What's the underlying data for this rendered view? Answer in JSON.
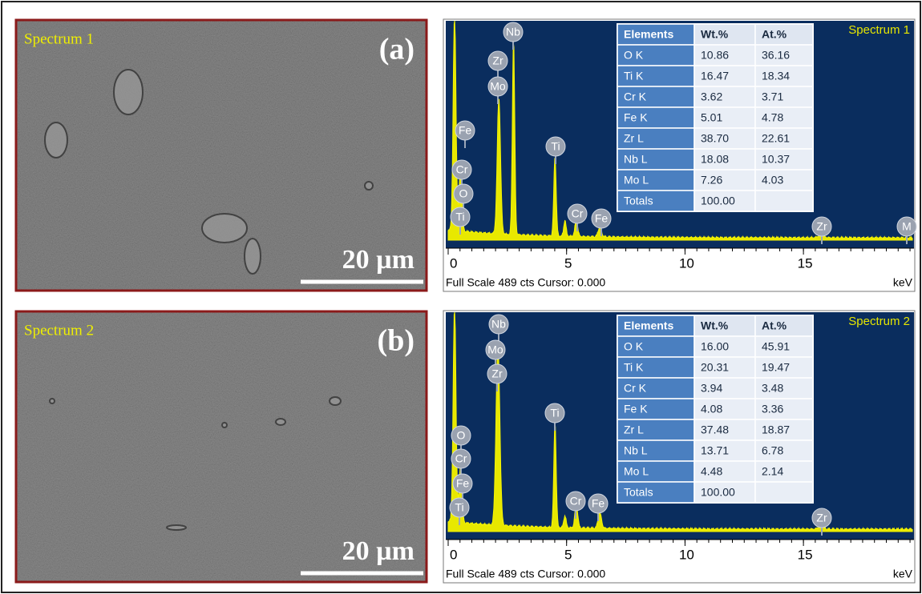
{
  "panels": [
    {
      "image": {
        "spectrum_label": "Spectrum 1",
        "panel_label": "(a)",
        "scale_bar": "20 µm"
      },
      "spectrum": {
        "title": "Spectrum 1",
        "xlim": [
          0,
          19.6
        ],
        "xticks": [
          0,
          5,
          10,
          15
        ],
        "footer": "Full Scale 489 cts Cursor: 0.000",
        "unit": "keV",
        "peak_labels": [
          "Nb",
          "Zr",
          "Mo",
          "Fe",
          "Cr",
          "O",
          "Ti",
          "Ti",
          "Cr",
          "Fe",
          "Zr",
          "M"
        ]
      },
      "table": {
        "header": [
          "Elements",
          "Wt.%",
          "At.%"
        ],
        "rows": [
          [
            "O K",
            "10.86",
            "36.16"
          ],
          [
            "Ti K",
            "16.47",
            "18.34"
          ],
          [
            "Cr K",
            "3.62",
            "3.71"
          ],
          [
            "Fe K",
            "5.01",
            "4.78"
          ],
          [
            "Zr L",
            "38.70",
            "22.61"
          ],
          [
            "Nb L",
            "18.08",
            "10.37"
          ],
          [
            "Mo L",
            "7.26",
            "4.03"
          ],
          [
            "Totals",
            "100.00"
          ]
        ]
      }
    },
    {
      "image": {
        "spectrum_label": "Spectrum 2",
        "panel_label": "(b)",
        "scale_bar": "20 µm"
      },
      "spectrum": {
        "title": "Spectrum 2",
        "xlim": [
          0,
          19.6
        ],
        "xticks": [
          0,
          5,
          10,
          15
        ],
        "footer": "Full Scale 489 cts Cursor: 0.000",
        "unit": "keV",
        "peak_labels": [
          "Nb",
          "Mo",
          "Zr",
          "O",
          "Cr",
          "Fe",
          "Ti",
          "Ti",
          "Cr",
          "Fe",
          "Zr"
        ]
      },
      "table": {
        "header": [
          "Elements",
          "Wt.%",
          "At.%"
        ],
        "rows": [
          [
            "O K",
            "16.00",
            "45.91"
          ],
          [
            "Ti K",
            "20.31",
            "19.47"
          ],
          [
            "Cr K",
            "3.94",
            "3.48"
          ],
          [
            "Fe K",
            "4.08",
            "3.36"
          ],
          [
            "Zr L",
            "37.48",
            "18.87"
          ],
          [
            "Nb L",
            "13.71",
            "6.78"
          ],
          [
            "Mo L",
            "4.48",
            "2.14"
          ],
          [
            "Totals",
            "100.00"
          ]
        ]
      }
    }
  ]
}
